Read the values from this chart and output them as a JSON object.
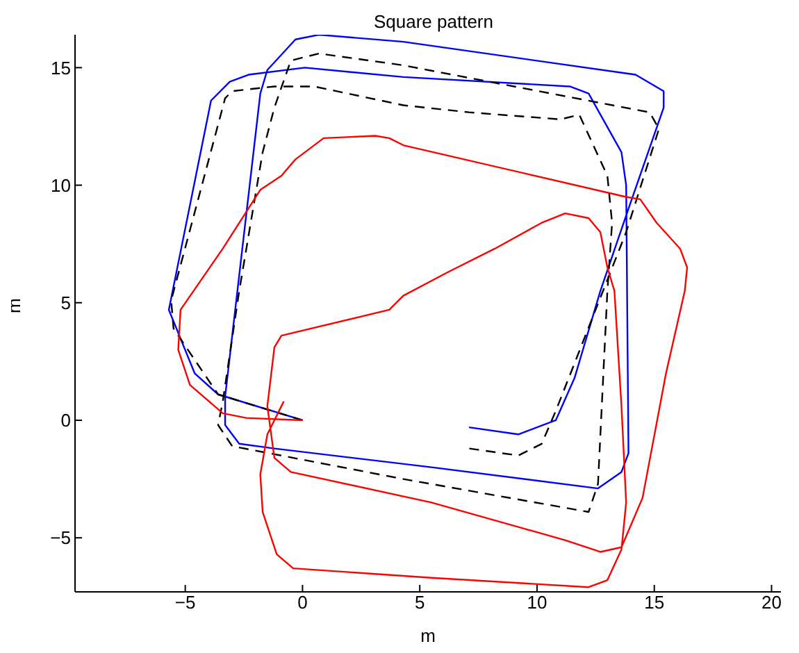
{
  "chart_data": {
    "type": "line",
    "title": "Square pattern",
    "xlabel": "m",
    "ylabel": "m",
    "xlim": [
      -9.7,
      20.4
    ],
    "ylim": [
      -7.3,
      16.4
    ],
    "xticks": [
      -5,
      0,
      5,
      10,
      15,
      20
    ],
    "yticks": [
      -5,
      0,
      5,
      10,
      15
    ],
    "grid": false,
    "legend": false,
    "marker": "none",
    "series": [
      {
        "color": "#0000ff",
        "line_style": "solid",
        "x": [
          0,
          -3.6,
          -4.6,
          -5.7,
          -3.9,
          -3.1,
          -2.3,
          0.1,
          4.3,
          11.4,
          12.2,
          13.6,
          13.8,
          13.9,
          13.6,
          12.6,
          5.5,
          -1.2,
          -2.7,
          -3.3,
          -3.3,
          -1.8,
          -1.5,
          -0.3,
          0.7,
          4.3,
          14.2,
          15.4,
          15.4,
          13.9,
          12.7,
          11.6,
          10.8,
          9.2,
          7.1
        ],
        "values": [
          0,
          1.1,
          2,
          4.7,
          13.6,
          14.4,
          14.7,
          15,
          14.6,
          14.2,
          13.9,
          11.4,
          10,
          -1.4,
          -2.2,
          -2.9,
          -2,
          -1.2,
          -1,
          -0.2,
          1,
          13.9,
          14.9,
          16.2,
          16.4,
          16.1,
          14.7,
          14,
          13.3,
          9,
          5.5,
          1.8,
          0,
          -0.6,
          -0.3
        ]
      },
      {
        "color": "#000000",
        "line_style": "dashed",
        "x": [
          0,
          -3.6,
          -5.5,
          -5.6,
          -3.3,
          -3,
          -1.2,
          0.5,
          4.3,
          7.1,
          11,
          11.8,
          13,
          13.2,
          13,
          12.6,
          12.2,
          4.3,
          -3,
          -3.6,
          -3.4,
          -2.7,
          -1.7,
          -1.2,
          -0.5,
          0.7,
          4.3,
          14.8,
          15.2,
          13.8,
          10.8,
          10.2,
          9.2,
          7.1
        ],
        "values": [
          0,
          1.1,
          3.9,
          5.1,
          13.7,
          14,
          14.2,
          14.2,
          13.4,
          13.1,
          12.8,
          13,
          10.4,
          8.4,
          5.5,
          -2.7,
          -3.9,
          -2.5,
          -1.1,
          -0.2,
          0.8,
          5.5,
          11.4,
          13.3,
          15.3,
          15.6,
          15.1,
          13.1,
          12.4,
          8,
          0.4,
          -1,
          -1.5,
          -1.2
        ]
      },
      {
        "color": "#ff0000",
        "line_style": "solid",
        "x": [
          -0.8,
          -1.5,
          -1.8,
          -1.7,
          -1.1,
          -0.4,
          5.5,
          12.2,
          13,
          13.6,
          13.8,
          13.6,
          13.3,
          13,
          12.7,
          12.2,
          11.2,
          10.2,
          8.2,
          6.2,
          4.3,
          3.7,
          -0.9,
          -1.2,
          -1.5,
          -1.2,
          -0.5,
          5.5,
          11.2,
          12.7,
          13.6,
          14.5,
          15.5,
          16.3,
          16.4,
          16.1,
          15.1,
          14.4,
          13.8,
          4.3,
          3.7,
          3.1,
          0.9,
          -0.3,
          -0.9,
          -1.8,
          -3.4,
          -5.2,
          -5.3,
          -4.8,
          -3.4,
          -2.4,
          0
        ],
        "values": [
          0.8,
          -0.6,
          -2.3,
          -3.9,
          -5.7,
          -6.3,
          -6.7,
          -7.1,
          -6.8,
          -5.5,
          -3.5,
          0.6,
          5.5,
          6.5,
          8,
          8.6,
          8.8,
          8.4,
          7.3,
          6.3,
          5.3,
          4.7,
          3.6,
          3.1,
          0.6,
          -1.6,
          -2.2,
          -3.5,
          -5.1,
          -5.6,
          -5.4,
          -3.3,
          2,
          5.5,
          6.5,
          7.3,
          8.4,
          9.4,
          9.5,
          11.7,
          12,
          12.1,
          12,
          11.1,
          10.4,
          9.8,
          7.3,
          4.7,
          3,
          1.5,
          0.3,
          0.1,
          0
        ]
      }
    ]
  }
}
